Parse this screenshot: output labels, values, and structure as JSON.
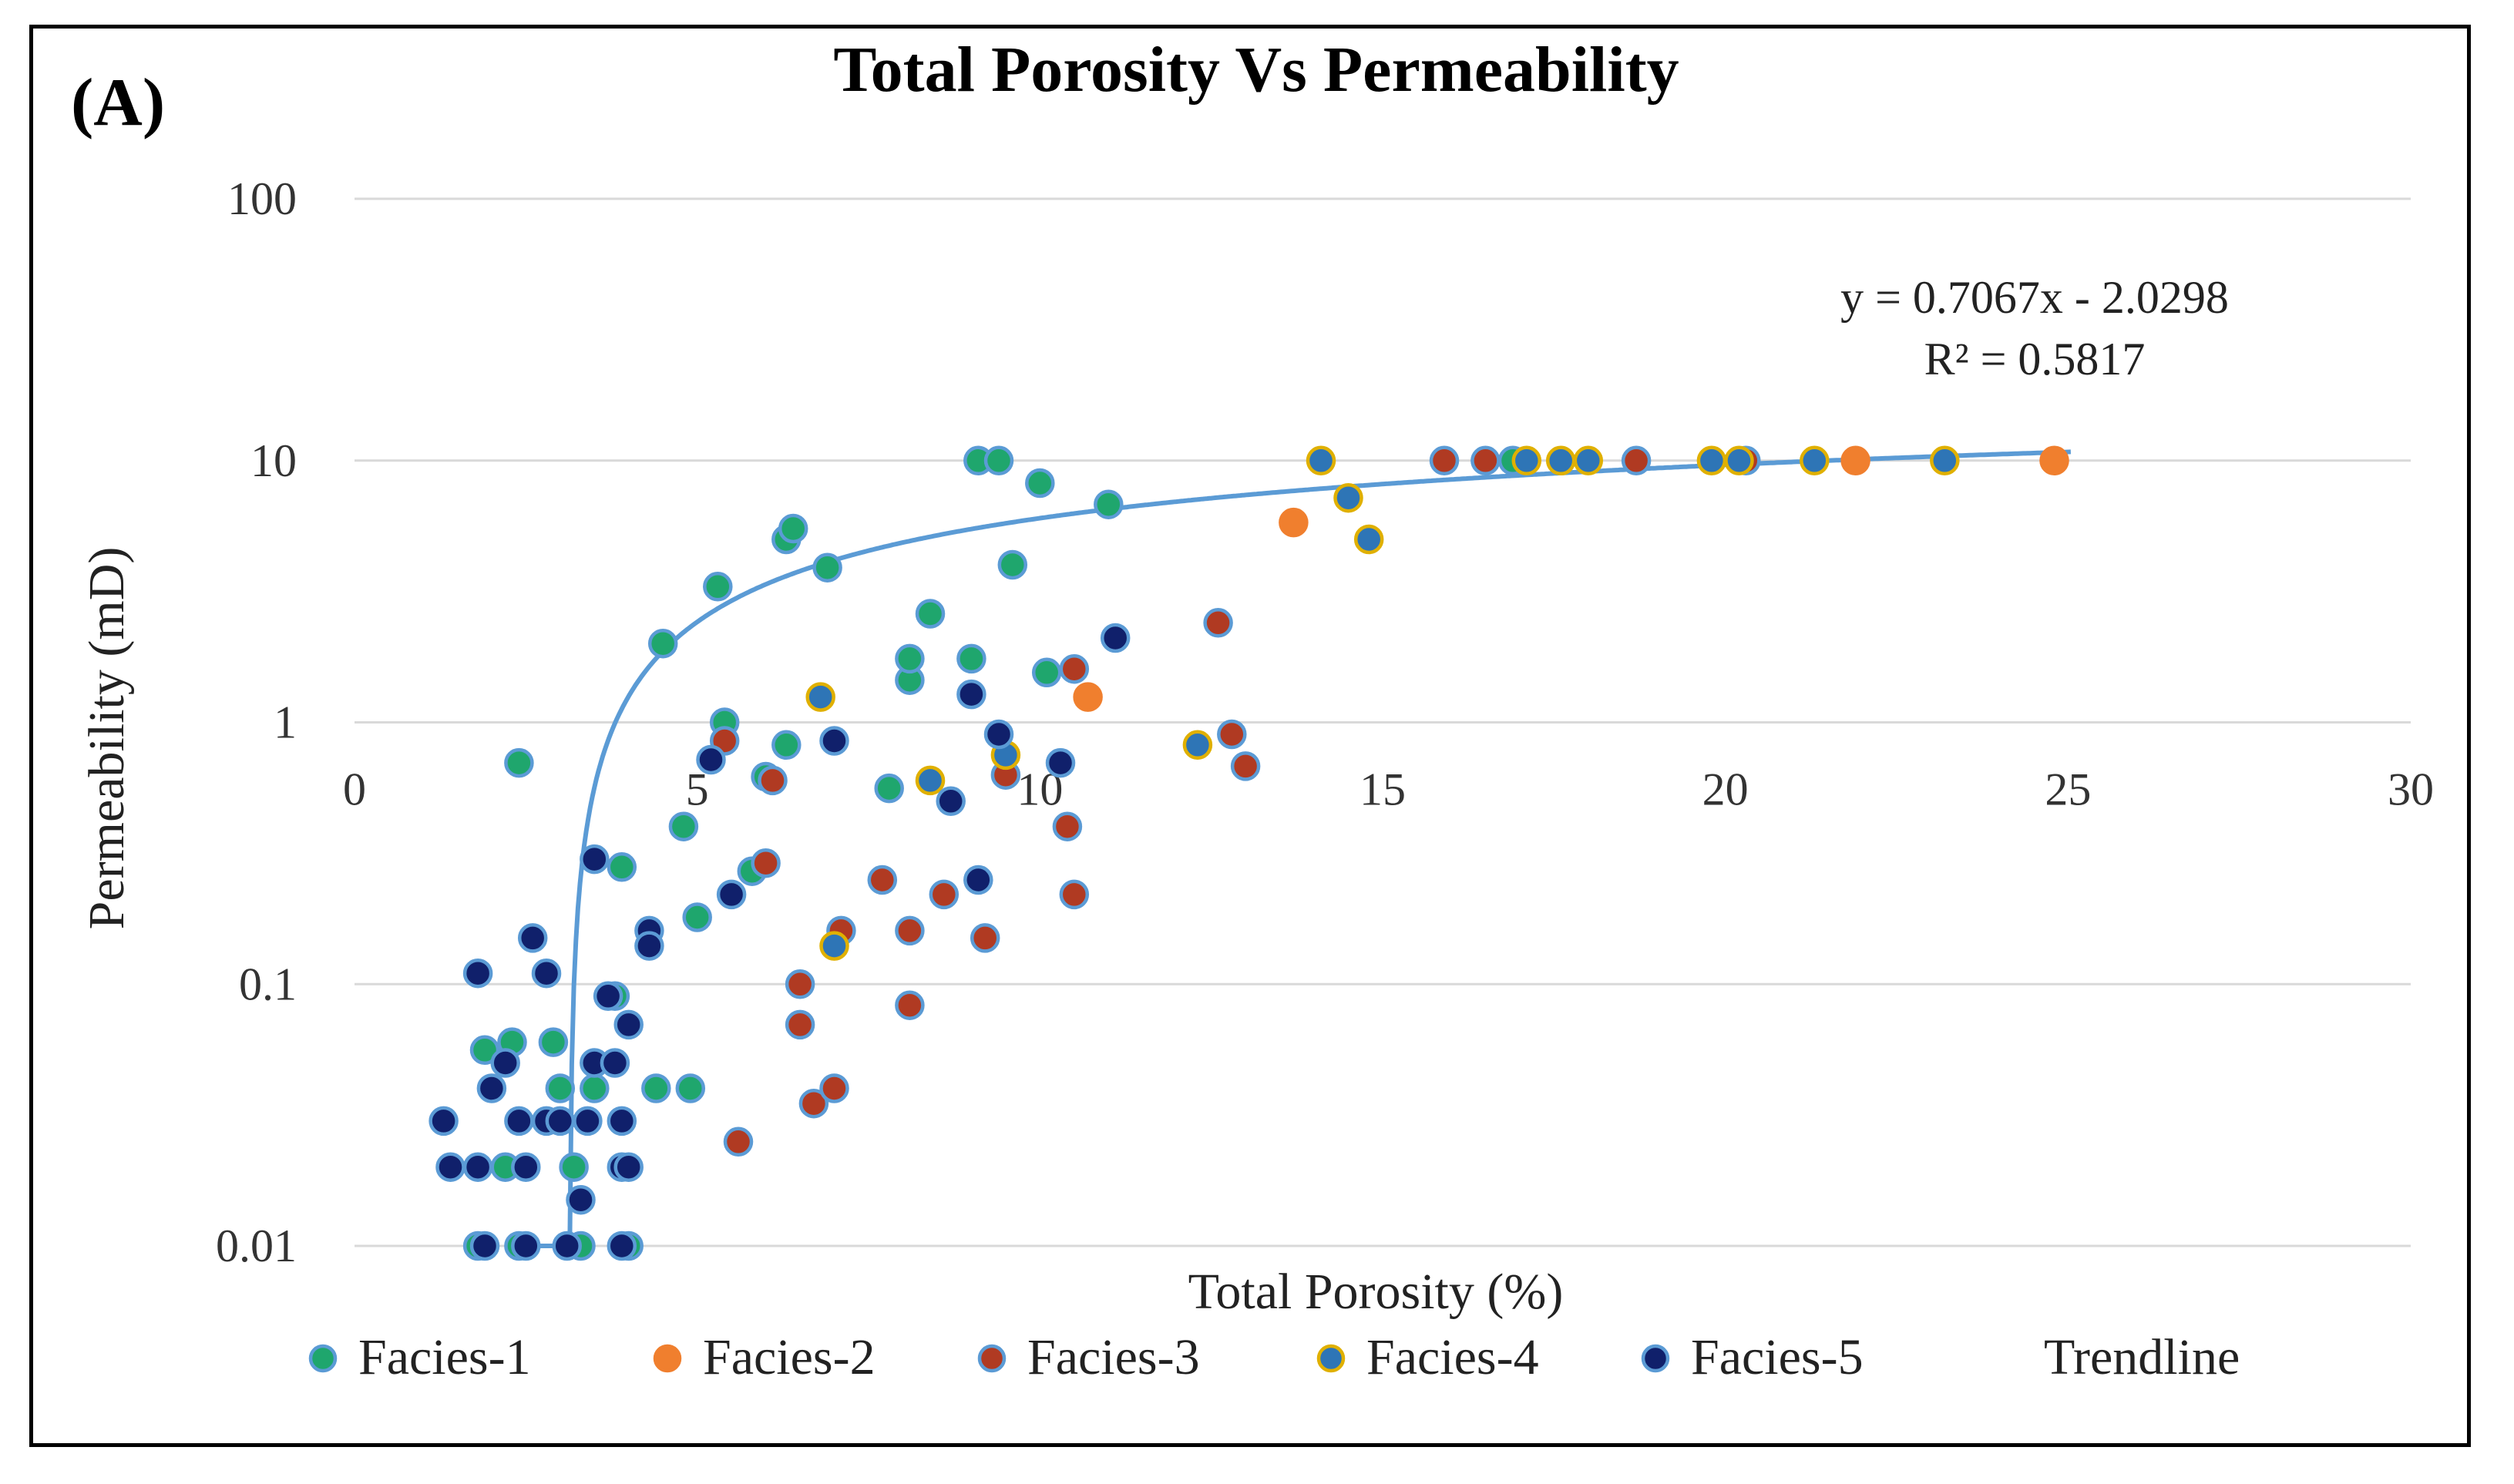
{
  "chart_data": {
    "type": "scatter",
    "panel_label": "(A)",
    "title": "Total Porosity Vs Permeability",
    "xlabel": "Total Porosity (%)",
    "ylabel": "Permeability (mD)",
    "xlim": [
      0,
      30
    ],
    "ylim": [
      0.01,
      100
    ],
    "y_scale": "log",
    "x_ticks": [
      "0",
      "5",
      "10",
      "15",
      "20",
      "25",
      "30"
    ],
    "y_ticks": [
      "100",
      "10",
      "1",
      "0.1",
      "0.01"
    ],
    "grid": "horizontal",
    "legend_position": "bottom",
    "trendline": {
      "name": "Trendline",
      "equation": "y = 0.7067x - 2.0298",
      "r_squared": "R² = 0.5817",
      "color": "#5b9bd5"
    },
    "series": [
      {
        "name": "Facies-1",
        "color": "#1fa66d",
        "edge": "#5b9bd5",
        "points": [
          [
            2.4,
            0.7
          ],
          [
            1.9,
            0.056
          ],
          [
            2.3,
            0.06
          ],
          [
            2.9,
            0.06
          ],
          [
            3.0,
            0.04
          ],
          [
            3.5,
            0.04
          ],
          [
            3.8,
            0.09
          ],
          [
            3.2,
            0.02
          ],
          [
            3.3,
            0.01
          ],
          [
            4.0,
            0.01
          ],
          [
            2.2,
            0.02
          ],
          [
            1.8,
            0.01
          ],
          [
            2.4,
            0.01
          ],
          [
            3.9,
            0.28
          ],
          [
            4.4,
            0.04
          ],
          [
            4.9,
            0.04
          ],
          [
            4.8,
            0.4
          ],
          [
            5.0,
            0.18
          ],
          [
            4.5,
            2.0
          ],
          [
            5.4,
            1.0
          ],
          [
            5.3,
            3.3
          ],
          [
            5.8,
            0.27
          ],
          [
            6.0,
            0.62
          ],
          [
            6.3,
            0.82
          ],
          [
            6.3,
            5.0
          ],
          [
            6.4,
            5.5
          ],
          [
            6.9,
            3.9
          ],
          [
            7.8,
            0.56
          ],
          [
            8.1,
            1.45
          ],
          [
            8.1,
            1.75
          ],
          [
            8.4,
            2.6
          ],
          [
            9.0,
            1.75
          ],
          [
            9.1,
            10.0
          ],
          [
            9.4,
            10.0
          ],
          [
            9.6,
            4.0
          ],
          [
            10.0,
            8.2
          ],
          [
            10.1,
            1.55
          ],
          [
            11.0,
            6.8
          ],
          [
            16.9,
            10.0
          ]
        ]
      },
      {
        "name": "Facies-2",
        "color": "#f07f2e",
        "edge": "#f07f2e",
        "points": [
          [
            10.7,
            1.25
          ],
          [
            13.7,
            5.8
          ],
          [
            21.9,
            10.0
          ],
          [
            24.8,
            10.0
          ]
        ]
      },
      {
        "name": "Facies-3",
        "color": "#b03a22",
        "edge": "#5b9bd5",
        "points": [
          [
            5.6,
            0.025
          ],
          [
            5.4,
            0.85
          ],
          [
            6.1,
            0.6
          ],
          [
            6.0,
            0.29
          ],
          [
            6.5,
            0.1
          ],
          [
            6.5,
            0.07
          ],
          [
            6.7,
            0.035
          ],
          [
            7.0,
            0.04
          ],
          [
            7.1,
            0.16
          ],
          [
            7.7,
            0.25
          ],
          [
            8.1,
            0.16
          ],
          [
            8.1,
            0.083
          ],
          [
            8.6,
            0.22
          ],
          [
            9.2,
            0.15
          ],
          [
            9.5,
            0.63
          ],
          [
            10.4,
            0.4
          ],
          [
            10.5,
            0.22
          ],
          [
            10.5,
            1.6
          ],
          [
            12.6,
            2.4
          ],
          [
            12.8,
            0.9
          ],
          [
            13.0,
            0.68
          ],
          [
            15.9,
            10.0
          ],
          [
            16.5,
            10.0
          ],
          [
            18.7,
            10.0
          ],
          [
            20.3,
            10.0
          ]
        ]
      },
      {
        "name": "Facies-4",
        "color": "#2e75b6",
        "edge": "#e0b000",
        "points": [
          [
            6.8,
            1.25
          ],
          [
            7.0,
            0.14
          ],
          [
            8.4,
            0.6
          ],
          [
            9.5,
            0.75
          ],
          [
            12.3,
            0.82
          ],
          [
            14.1,
            10.0
          ],
          [
            14.5,
            7.2
          ],
          [
            14.8,
            5.0
          ],
          [
            17.1,
            10.0
          ],
          [
            17.6,
            10.0
          ],
          [
            18.0,
            10.0
          ],
          [
            19.8,
            10.0
          ],
          [
            20.2,
            10.0
          ],
          [
            21.3,
            10.0
          ],
          [
            23.2,
            10.0
          ]
        ]
      },
      {
        "name": "Facies-5",
        "color": "#10206b",
        "edge": "#5b9bd5",
        "points": [
          [
            1.3,
            0.03
          ],
          [
            1.4,
            0.02
          ],
          [
            1.8,
            0.02
          ],
          [
            1.8,
            0.11
          ],
          [
            1.9,
            0.01
          ],
          [
            2.0,
            0.04
          ],
          [
            2.2,
            0.05
          ],
          [
            2.4,
            0.03
          ],
          [
            2.5,
            0.02
          ],
          [
            2.5,
            0.01
          ],
          [
            2.6,
            0.15
          ],
          [
            2.8,
            0.11
          ],
          [
            2.8,
            0.03
          ],
          [
            3.0,
            0.03
          ],
          [
            3.1,
            0.01
          ],
          [
            3.3,
            0.015
          ],
          [
            3.4,
            0.03
          ],
          [
            3.5,
            0.05
          ],
          [
            3.5,
            0.3
          ],
          [
            3.7,
            0.09
          ],
          [
            3.8,
            0.05
          ],
          [
            3.9,
            0.03
          ],
          [
            3.9,
            0.02
          ],
          [
            3.9,
            0.01
          ],
          [
            4.0,
            0.07
          ],
          [
            4.0,
            0.02
          ],
          [
            4.3,
            0.16
          ],
          [
            4.3,
            0.14
          ],
          [
            5.2,
            0.72
          ],
          [
            5.5,
            0.22
          ],
          [
            7.0,
            0.85
          ],
          [
            8.7,
            0.5
          ],
          [
            9.0,
            1.28
          ],
          [
            9.1,
            0.25
          ],
          [
            9.4,
            0.9
          ],
          [
            10.3,
            0.7
          ],
          [
            11.1,
            2.1
          ]
        ]
      }
    ]
  }
}
